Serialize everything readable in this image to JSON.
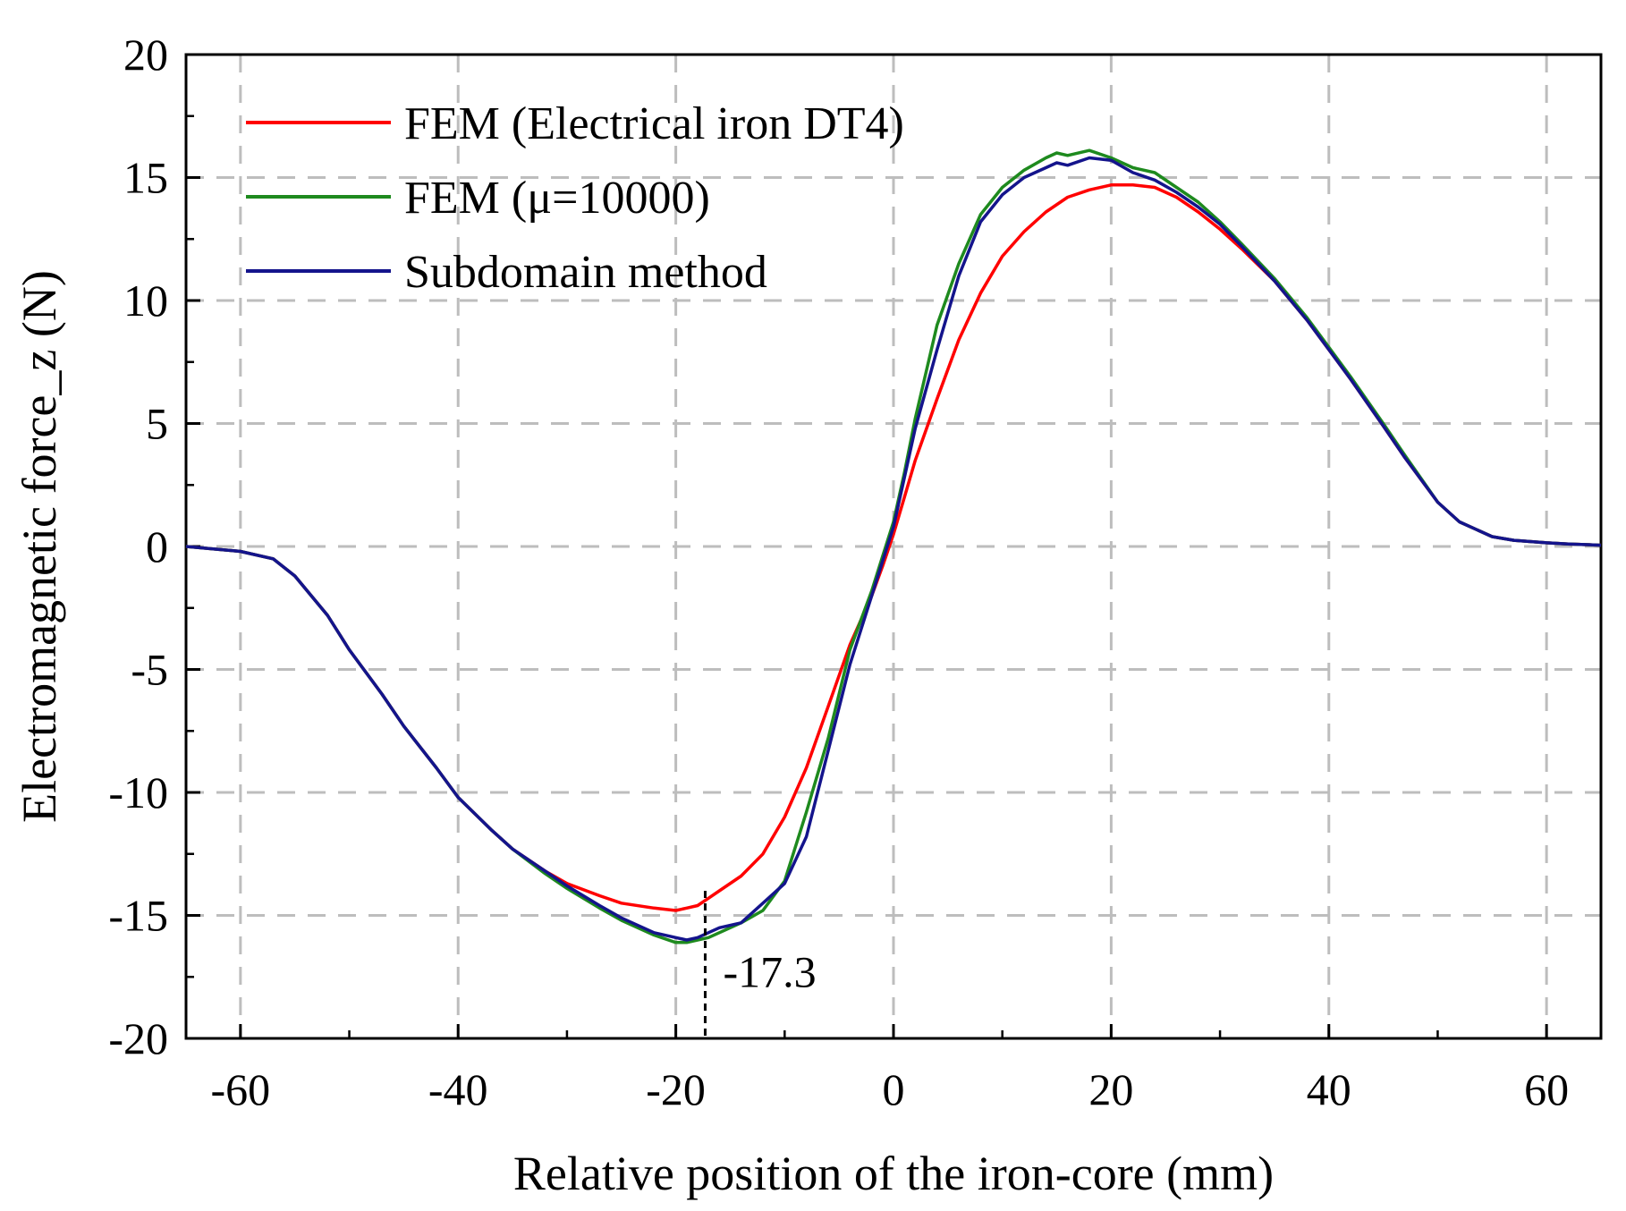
{
  "chart_data": {
    "type": "line",
    "title": "",
    "xlabel": "Relative position of the iron-core (mm)",
    "ylabel": "Electromagnetic force_z (N)",
    "xlim": [
      -65,
      65
    ],
    "ylim": [
      -20,
      20
    ],
    "xticks": [
      -60,
      -40,
      -20,
      0,
      20,
      40,
      60
    ],
    "yticks": [
      -20,
      -15,
      -10,
      -5,
      0,
      5,
      10,
      15,
      20
    ],
    "grid": true,
    "legend_position": "top-left",
    "annotation": {
      "x": -17.3,
      "label": "-17.3"
    },
    "series": [
      {
        "name": "FEM (Electrical iron DT4)",
        "color": "#ff0000",
        "x": [
          -65,
          -60,
          -57,
          -55,
          -52,
          -50,
          -47,
          -45,
          -42,
          -40,
          -37,
          -35,
          -32,
          -30,
          -27,
          -25,
          -22,
          -20,
          -19,
          -18,
          -17,
          -16,
          -14,
          -12,
          -10,
          -8,
          -6,
          -4,
          -2,
          -1,
          0,
          1,
          2,
          4,
          6,
          8,
          10,
          12,
          14,
          16,
          18,
          20,
          22,
          24,
          26,
          28,
          30,
          32,
          35,
          38,
          40,
          42,
          45,
          47,
          50,
          52,
          55,
          57,
          60,
          62,
          65
        ],
        "y": [
          0,
          -0.2,
          -0.5,
          -1.2,
          -2.8,
          -4.2,
          -6.0,
          -7.3,
          -9.0,
          -10.2,
          -11.5,
          -12.3,
          -13.2,
          -13.7,
          -14.2,
          -14.5,
          -14.7,
          -14.8,
          -14.7,
          -14.6,
          -14.3,
          -14.0,
          -13.4,
          -12.5,
          -11.0,
          -9.0,
          -6.5,
          -4.0,
          -2.0,
          -0.8,
          0.5,
          2.0,
          3.5,
          6.0,
          8.4,
          10.3,
          11.8,
          12.8,
          13.6,
          14.2,
          14.5,
          14.7,
          14.7,
          14.6,
          14.2,
          13.6,
          12.9,
          12.1,
          10.8,
          9.2,
          8.0,
          6.8,
          4.9,
          3.6,
          1.8,
          1.0,
          0.4,
          0.25,
          0.15,
          0.1,
          0.05
        ]
      },
      {
        "name": "FEM (μ=10000)",
        "color": "#1e8a1e",
        "x": [
          -65,
          -60,
          -57,
          -55,
          -52,
          -50,
          -47,
          -45,
          -42,
          -40,
          -37,
          -35,
          -32,
          -30,
          -27,
          -25,
          -22,
          -20,
          -19,
          -18,
          -17,
          -16,
          -14,
          -12,
          -10,
          -8,
          -6,
          -4,
          -2,
          -1,
          0,
          1,
          2,
          4,
          6,
          8,
          10,
          12,
          14,
          15,
          16,
          18,
          20,
          22,
          24,
          26,
          28,
          30,
          32,
          35,
          38,
          40,
          42,
          45,
          47,
          50,
          52,
          55,
          57,
          60,
          62,
          65
        ],
        "y": [
          0,
          -0.2,
          -0.5,
          -1.2,
          -2.8,
          -4.2,
          -6.0,
          -7.3,
          -9.0,
          -10.2,
          -11.5,
          -12.3,
          -13.3,
          -13.9,
          -14.7,
          -15.2,
          -15.8,
          -16.1,
          -16.1,
          -16.0,
          -15.9,
          -15.7,
          -15.3,
          -14.8,
          -13.6,
          -10.8,
          -7.8,
          -4.2,
          -1.8,
          -0.4,
          1.0,
          3.0,
          5.2,
          9.0,
          11.5,
          13.5,
          14.6,
          15.3,
          15.8,
          16.0,
          15.9,
          16.1,
          15.8,
          15.4,
          15.2,
          14.6,
          14.0,
          13.2,
          12.3,
          10.9,
          9.3,
          8.1,
          6.9,
          5.0,
          3.7,
          1.8,
          1.0,
          0.4,
          0.25,
          0.15,
          0.1,
          0.05
        ]
      },
      {
        "name": "Subdomain method",
        "color": "#14148c",
        "x": [
          -65,
          -60,
          -57,
          -55,
          -52,
          -50,
          -47,
          -45,
          -42,
          -40,
          -37,
          -35,
          -32,
          -30,
          -27,
          -25,
          -22,
          -20,
          -19,
          -18,
          -17,
          -16,
          -14,
          -12,
          -10,
          -8,
          -6,
          -4,
          -2,
          -1,
          0,
          1,
          2,
          4,
          6,
          8,
          10,
          12,
          14,
          15,
          16,
          18,
          20,
          22,
          24,
          26,
          28,
          30,
          32,
          35,
          38,
          40,
          42,
          45,
          47,
          50,
          52,
          55,
          57,
          60,
          62,
          65
        ],
        "y": [
          0,
          -0.2,
          -0.5,
          -1.2,
          -2.8,
          -4.2,
          -6.0,
          -7.3,
          -9.0,
          -10.2,
          -11.5,
          -12.3,
          -13.2,
          -13.8,
          -14.6,
          -15.1,
          -15.7,
          -15.9,
          -16.0,
          -15.9,
          -15.7,
          -15.5,
          -15.3,
          -14.5,
          -13.7,
          -11.8,
          -8.3,
          -4.8,
          -2.0,
          -0.6,
          0.8,
          2.8,
          4.8,
          8.0,
          11.0,
          13.2,
          14.3,
          15.0,
          15.4,
          15.6,
          15.5,
          15.8,
          15.7,
          15.2,
          14.9,
          14.4,
          13.8,
          13.1,
          12.2,
          10.8,
          9.2,
          8.0,
          6.8,
          4.9,
          3.6,
          1.8,
          1.0,
          0.4,
          0.25,
          0.15,
          0.1,
          0.05
        ]
      }
    ]
  }
}
